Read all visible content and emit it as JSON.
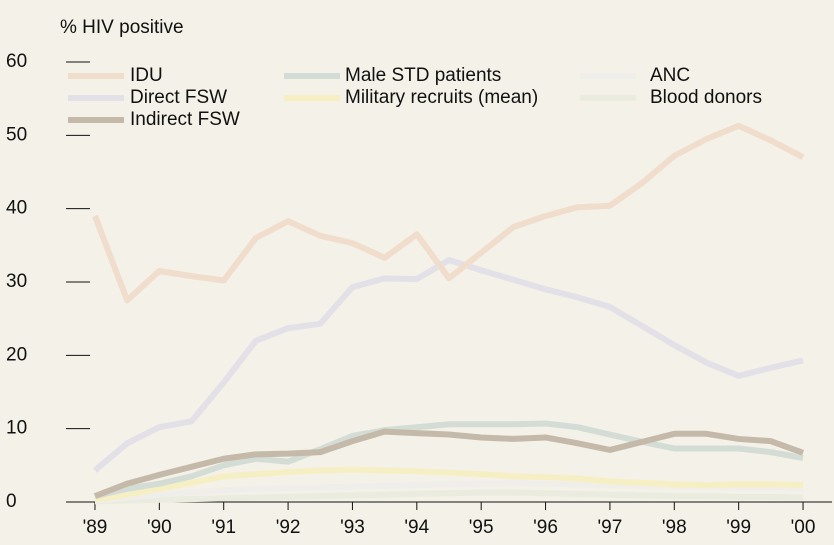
{
  "chart_data": {
    "type": "line",
    "y_label": "% HIV positive",
    "x": [
      1989,
      1989.5,
      1990,
      1990.5,
      1991,
      1991.5,
      1992,
      1992.5,
      1993,
      1993.5,
      1994,
      1994.5,
      1995,
      1995.5,
      1996,
      1996.5,
      1997,
      1997.5,
      1998,
      1998.5,
      1999,
      1999.5,
      2000
    ],
    "series": [
      {
        "name": "IDU",
        "color": "#f0ddcc",
        "values": [
          39,
          27.5,
          31.5,
          30.8,
          30.2,
          36,
          38.3,
          36.3,
          35.3,
          33.3,
          36.5,
          30.5,
          34,
          37.5,
          39,
          40.2,
          40.4,
          43.5,
          47.2,
          49.5,
          51.3,
          49.3,
          47
        ]
      },
      {
        "name": "Direct FSW",
        "color": "#e3e0e8",
        "values": [
          4.3,
          8,
          10.2,
          11,
          16.3,
          22,
          23.7,
          24.3,
          29.3,
          30.5,
          30.4,
          33,
          31.6,
          30.3,
          29,
          27.9,
          26.6,
          24,
          21.4,
          19,
          17.2,
          18.3,
          19.3
        ]
      },
      {
        "name": "Indirect FSW",
        "color": "#c5b9aa",
        "values": [
          0.8,
          2.5,
          3.7,
          4.8,
          5.9,
          6.5,
          6.6,
          6.8,
          8.3,
          9.6,
          9.4,
          9.2,
          8.8,
          8.6,
          8.8,
          8,
          7.1,
          8.2,
          9.3,
          9.3,
          8.6,
          8.3,
          6.7
        ]
      },
      {
        "name": "Male STD patients",
        "color": "#d4ddd5",
        "values": [
          0.8,
          1.8,
          2.5,
          3.5,
          5,
          5.9,
          5.5,
          7.2,
          9,
          9.8,
          10.2,
          10.6,
          10.6,
          10.6,
          10.7,
          10.2,
          9.2,
          8.2,
          7.3,
          7.3,
          7.3,
          6.8,
          6
        ]
      },
      {
        "name": "Military recruits (mean)",
        "color": "#f6efc4",
        "values": [
          0.3,
          1,
          1.8,
          2.6,
          3.5,
          3.8,
          4.1,
          4.3,
          4.4,
          4.3,
          4.2,
          4,
          3.8,
          3.5,
          3.4,
          3.2,
          2.8,
          2.6,
          2.4,
          2.3,
          2.4,
          2.4,
          2.3
        ]
      },
      {
        "name": "ANC",
        "color": "#f0eeea",
        "values": [
          0.2,
          0.6,
          1,
          1.3,
          1.6,
          1.8,
          1.9,
          2,
          2.1,
          2.2,
          2.3,
          2.4,
          2.5,
          2.6,
          2.5,
          2.4,
          2.3,
          2.2,
          2.1,
          2.1,
          2,
          2,
          1.9
        ]
      },
      {
        "name": "Blood donors",
        "color": "#eaecdf",
        "values": [
          0.1,
          0.2,
          0.3,
          0.4,
          0.5,
          0.6,
          0.7,
          0.8,
          0.9,
          1,
          1.1,
          1.2,
          1.3,
          1.3,
          1.2,
          1.1,
          1,
          0.9,
          0.8,
          0.8,
          0.7,
          0.7,
          0.6
        ]
      }
    ],
    "xlim": [
      1988.55,
      2000.45
    ],
    "xticks": [
      {
        "value": 1989,
        "label": "'89"
      },
      {
        "value": 1990,
        "label": "'90"
      },
      {
        "value": 1991,
        "label": "'91"
      },
      {
        "value": 1992,
        "label": "'92"
      },
      {
        "value": 1993,
        "label": "'93"
      },
      {
        "value": 1994,
        "label": "'94"
      },
      {
        "value": 1995,
        "label": "'95"
      },
      {
        "value": 1996,
        "label": "'96"
      },
      {
        "value": 1997,
        "label": "'97"
      },
      {
        "value": 1998,
        "label": "'98"
      },
      {
        "value": 1999,
        "label": "'99"
      },
      {
        "value": 2000,
        "label": "'00"
      }
    ],
    "ylim": [
      0,
      60
    ],
    "yticks": [
      0,
      10,
      20,
      30,
      40,
      50,
      60
    ]
  }
}
